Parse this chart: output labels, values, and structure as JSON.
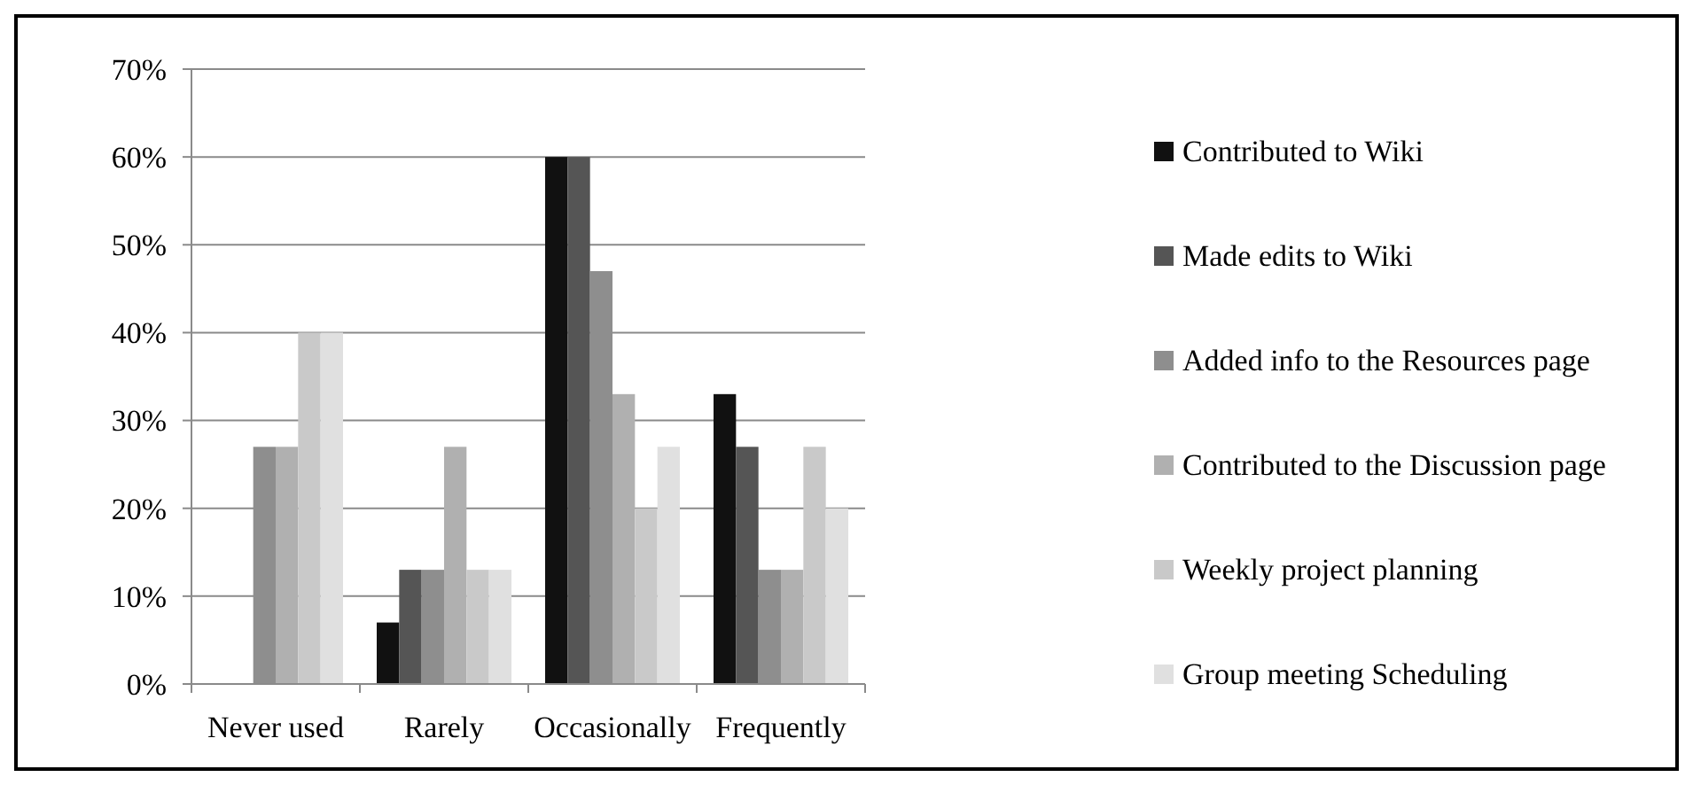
{
  "chart_data": {
    "type": "bar",
    "categories": [
      "Never used",
      "Rarely",
      "Occasionally",
      "Frequently"
    ],
    "series": [
      {
        "name": "Contributed to Wiki",
        "color": "#111111",
        "values": [
          0,
          7,
          60,
          33
        ]
      },
      {
        "name": "Made edits to Wiki",
        "color": "#555555",
        "values": [
          0,
          13,
          60,
          27
        ]
      },
      {
        "name": "Added info to the Resources page",
        "color": "#8e8e8e",
        "values": [
          27,
          13,
          47,
          13
        ]
      },
      {
        "name": "Contributed to the Discussion page",
        "color": "#b0b0b0",
        "values": [
          27,
          27,
          33,
          13
        ]
      },
      {
        "name": "Weekly project planning",
        "color": "#c9c9c9",
        "values": [
          40,
          13,
          20,
          27
        ]
      },
      {
        "name": "Group meeting Scheduling",
        "color": "#e0e0e0",
        "values": [
          40,
          13,
          27,
          20
        ]
      }
    ],
    "ylim": [
      0,
      70
    ],
    "yticks": [
      {
        "value": 0,
        "label": "0%"
      },
      {
        "value": 10,
        "label": "10%"
      },
      {
        "value": 20,
        "label": "20%"
      },
      {
        "value": 30,
        "label": "30%"
      },
      {
        "value": 40,
        "label": "40%"
      },
      {
        "value": 50,
        "label": "50%"
      },
      {
        "value": 60,
        "label": "60%"
      },
      {
        "value": 70,
        "label": "70%"
      }
    ],
    "grid": "y",
    "legend": "right"
  }
}
